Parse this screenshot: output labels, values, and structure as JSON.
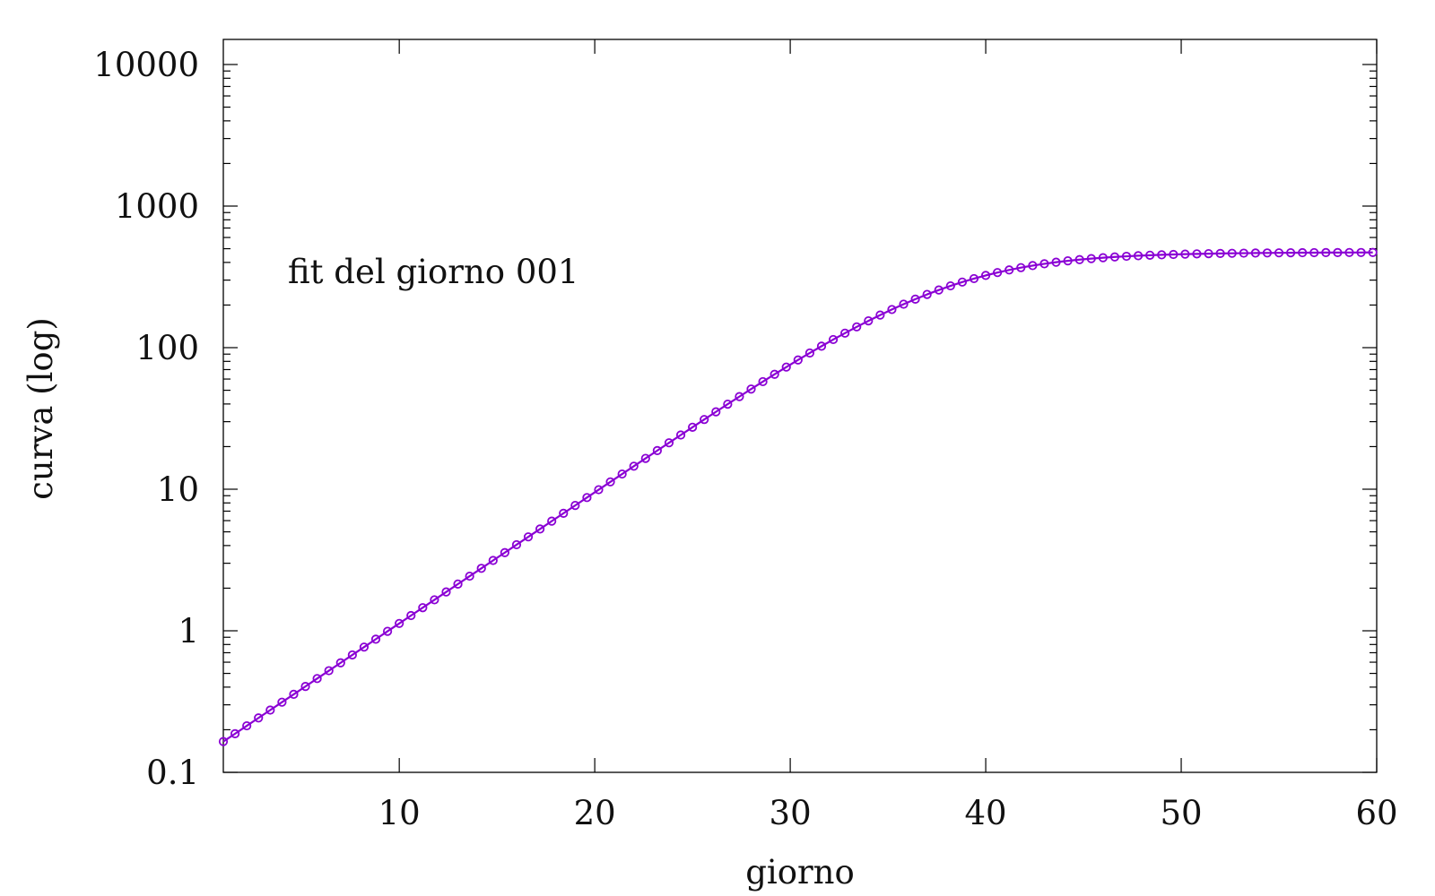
{
  "chart_data": {
    "type": "line",
    "title": "",
    "xlabel": "giorno",
    "ylabel": "curva (log)",
    "annotation": "fit del giorno 001",
    "xlim": [
      1,
      60
    ],
    "ylim": [
      0.1,
      20000
    ],
    "yscale": "log",
    "grid": false,
    "legend": "none",
    "xticks": [
      10,
      20,
      30,
      40,
      50,
      60
    ],
    "xtick_labels": [
      "10",
      "20",
      "30",
      "40",
      "50",
      "60"
    ],
    "yticks": [
      0.1,
      1,
      10,
      100,
      1000,
      10000
    ],
    "ytick_labels": [
      "0.1",
      "1",
      "10",
      "100",
      "1000",
      "10000"
    ],
    "series": [
      {
        "color": "#8a00d4",
        "marker": "open-circle",
        "x": [
          1.0,
          1.6,
          2.2,
          2.8,
          3.4,
          4.0,
          4.6,
          5.2,
          5.8,
          6.4,
          7.0,
          7.6,
          8.2,
          8.8,
          9.4,
          10.0,
          10.6,
          11.2,
          11.8,
          12.4,
          13.0,
          13.6,
          14.2,
          14.8,
          15.4,
          16.0,
          16.6,
          17.2,
          17.8,
          18.4,
          19.0,
          19.6,
          20.2,
          20.8,
          21.4,
          22.0,
          22.6,
          23.2,
          23.8,
          24.4,
          25.0,
          25.6,
          26.2,
          26.8,
          27.4,
          28.0,
          28.6,
          29.2,
          29.8,
          30.4,
          31.0,
          31.6,
          32.2,
          32.8,
          33.4,
          34.0,
          34.6,
          35.2,
          35.8,
          36.4,
          37.0,
          37.6,
          38.2,
          38.8,
          39.4,
          40.0,
          40.6,
          41.2,
          41.8,
          42.4,
          43.0,
          43.6,
          44.2,
          44.8,
          45.4,
          46.0,
          46.6,
          47.2,
          47.8,
          48.4,
          49.0,
          49.6,
          50.2,
          50.8,
          51.4,
          52.0,
          52.6,
          53.2,
          53.8,
          54.4,
          55.0,
          55.6,
          56.2,
          56.8,
          57.4,
          58.0,
          58.6,
          59.2,
          59.8
        ],
        "y": [
          0.165,
          0.1875,
          0.2132,
          0.2423,
          0.2754,
          0.313,
          0.3558,
          0.4044,
          0.4597,
          0.5225,
          0.5939,
          0.675,
          0.7673,
          0.8721,
          0.9913,
          1.127,
          1.281,
          1.456,
          1.655,
          1.881,
          2.138,
          2.43,
          2.762,
          3.139,
          3.567,
          4.054,
          4.607,
          5.236,
          5.95,
          6.76,
          7.68,
          8.73,
          9.92,
          11.27,
          12.8,
          14.54,
          16.51,
          18.75,
          21.28,
          24.15,
          27.4,
          31.07,
          35.21,
          39.87,
          45.11,
          50.98,
          57.53,
          64.83,
          72.92,
          81.85,
          91.65,
          102.4,
          114.1,
          126.6,
          140.2,
          154.6,
          169.9,
          186.0,
          202.8,
          220.1,
          237.7,
          255.4,
          273.1,
          290.5,
          307.5,
          323.8,
          339.3,
          353.9,
          367.4,
          379.9,
          391.2,
          401.3,
          410.4,
          418.5,
          425.6,
          431.8,
          437.2,
          441.9,
          446.0,
          449.6,
          452.6,
          455.3,
          457.6,
          459.6,
          461.3,
          462.7,
          464.0,
          465.0,
          466.0,
          466.7,
          467.4,
          468.0,
          468.5,
          468.9,
          469.3,
          469.6,
          469.9,
          470.1,
          470.3
        ]
      }
    ]
  }
}
